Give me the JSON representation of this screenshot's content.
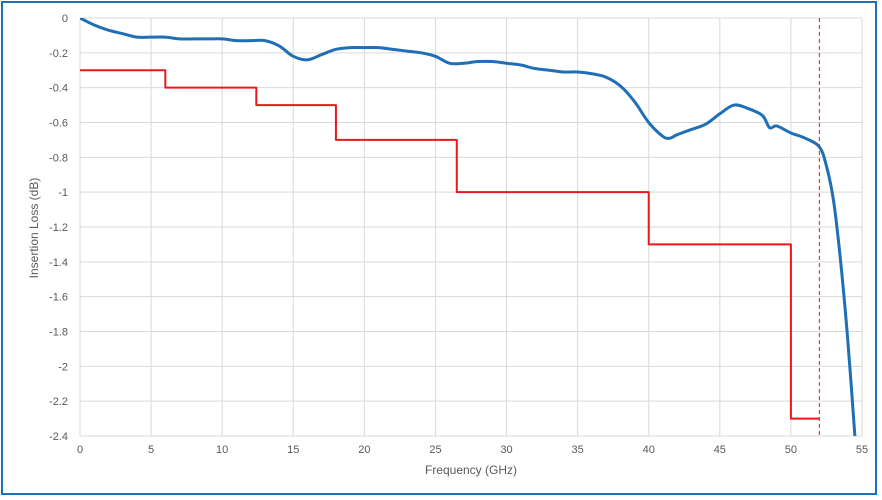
{
  "chart_data": {
    "type": "line",
    "title": "",
    "xlabel": "Frequency (GHz)",
    "ylabel": "Insertion Loss (dB)",
    "xlim": [
      0,
      55
    ],
    "ylim": [
      -2.4,
      0
    ],
    "xticks": [
      0,
      5,
      10,
      15,
      20,
      25,
      30,
      35,
      40,
      45,
      50,
      55
    ],
    "xtick_labels": [
      "0",
      "5",
      "10",
      "15",
      "20",
      "25",
      "30",
      "35",
      "40",
      "45",
      "50",
      "55"
    ],
    "yticks": [
      0,
      -0.2,
      -0.4,
      -0.6,
      -0.8,
      -1,
      -1.2,
      -1.4,
      -1.6,
      -1.8,
      -2,
      -2.2,
      -2.4
    ],
    "ytick_labels": [
      "0",
      "-0.2",
      "-0.4",
      "-0.6",
      "-0.8",
      "-1",
      "-1.2",
      "-1.4",
      "-1.6",
      "-1.8",
      "-2",
      "-2.2",
      "-2.4"
    ],
    "grid": true,
    "series": [
      {
        "color": "#1f6fb6",
        "style": "solid",
        "x": [
          0,
          1,
          2,
          3,
          4,
          5,
          6,
          7,
          8,
          9,
          10,
          11,
          12,
          13,
          14,
          15,
          16,
          17,
          18,
          19,
          20,
          21,
          22,
          23,
          24,
          25,
          26,
          27,
          28,
          29,
          30,
          31,
          32,
          33,
          34,
          35,
          36,
          37,
          38,
          39,
          40,
          41,
          41.5,
          42,
          43,
          44,
          45,
          46,
          47,
          48,
          48.5,
          49,
          50,
          51,
          52,
          52.5,
          53,
          53.5,
          54,
          54.5
        ],
        "y": [
          0,
          -0.04,
          -0.07,
          -0.09,
          -0.11,
          -0.11,
          -0.11,
          -0.12,
          -0.12,
          -0.12,
          -0.12,
          -0.13,
          -0.13,
          -0.13,
          -0.16,
          -0.22,
          -0.24,
          -0.21,
          -0.18,
          -0.17,
          -0.17,
          -0.17,
          -0.18,
          -0.19,
          -0.2,
          -0.22,
          -0.26,
          -0.26,
          -0.25,
          -0.25,
          -0.26,
          -0.27,
          -0.29,
          -0.3,
          -0.31,
          -0.31,
          -0.32,
          -0.34,
          -0.39,
          -0.48,
          -0.6,
          -0.68,
          -0.69,
          -0.67,
          -0.64,
          -0.61,
          -0.55,
          -0.5,
          -0.52,
          -0.56,
          -0.63,
          -0.62,
          -0.66,
          -0.69,
          -0.74,
          -0.85,
          -1.05,
          -1.4,
          -1.85,
          -2.4
        ]
      },
      {
        "color": "#e8191a",
        "style": "step",
        "x": [
          0,
          6,
          6,
          12.4,
          12.4,
          18,
          18,
          26.5,
          26.5,
          40,
          40,
          50,
          50,
          52
        ],
        "y": [
          -0.3,
          -0.3,
          -0.4,
          -0.4,
          -0.5,
          -0.5,
          -0.7,
          -0.7,
          -1.0,
          -1.0,
          -1.3,
          -1.3,
          -2.3,
          -2.3
        ]
      }
    ],
    "annotations": [
      {
        "type": "vline",
        "x": 52,
        "color": "#e8191a",
        "style": "dashed"
      }
    ]
  }
}
